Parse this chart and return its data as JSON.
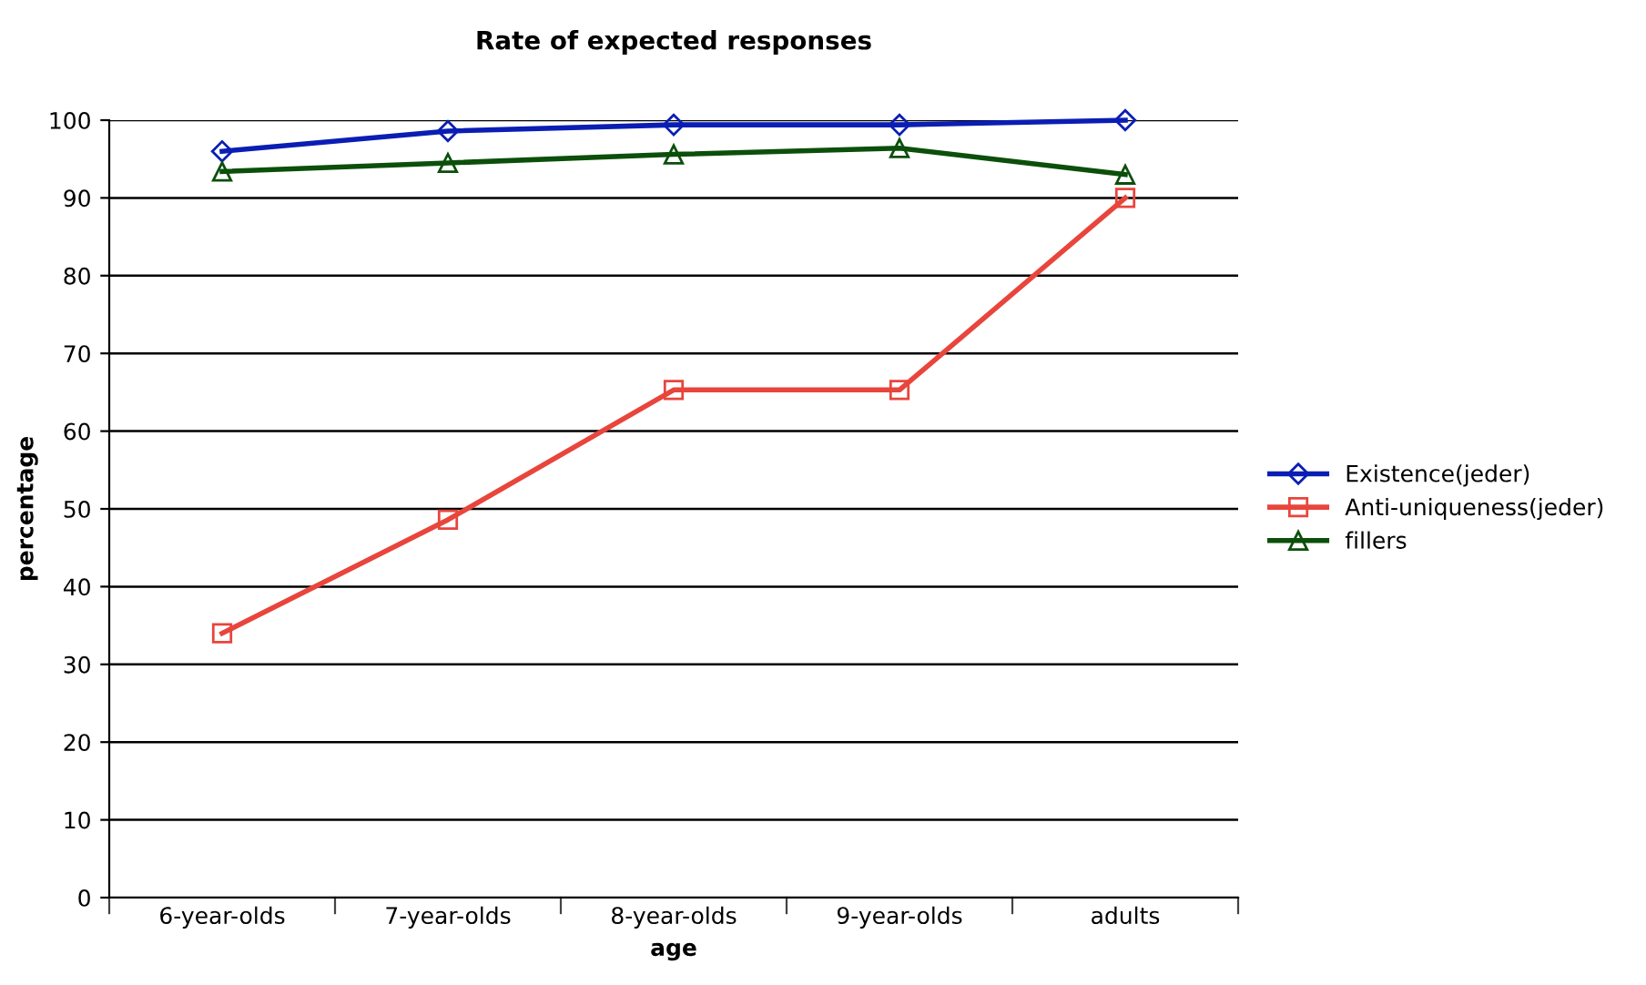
{
  "chart_data": {
    "type": "line",
    "title": "Rate of expected responses",
    "xlabel": "age",
    "ylabel": "percentage",
    "categories": [
      "6-year-olds",
      "7-year-olds",
      "8-year-olds",
      "9-year-olds",
      "adults"
    ],
    "series": [
      {
        "name": "Existence(jeder)",
        "color": "#0a1eb4",
        "marker": "diamond",
        "values": [
          96,
          98.6,
          99.4,
          99.4,
          100
        ]
      },
      {
        "name": "Anti-uniqueness(jeder)",
        "color": "#e8453c",
        "marker": "square",
        "values": [
          34,
          48.6,
          65.3,
          65.3,
          90
        ]
      },
      {
        "name": "fillers",
        "color": "#0b4f0b",
        "marker": "triangle",
        "values": [
          93.4,
          94.5,
          95.6,
          96.4,
          93
        ]
      }
    ],
    "ylim": [
      0,
      100
    ],
    "yticks": [
      0,
      10,
      20,
      30,
      40,
      50,
      60,
      70,
      80,
      90,
      100
    ],
    "grid": "y",
    "legend": "right",
    "line_style": "solid"
  }
}
